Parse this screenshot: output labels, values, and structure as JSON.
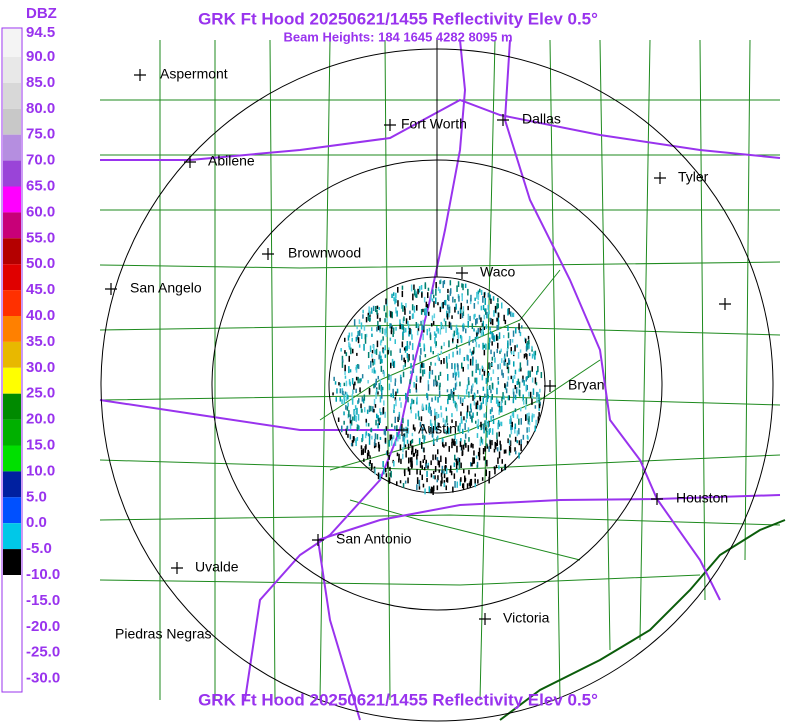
{
  "header": {
    "title": "GRK Ft Hood 20250621/1455 Reflectivity Elev 0.5°",
    "subtitle": "Beam Heights: 184 1645 4282 8095 m"
  },
  "legend": {
    "unit": "DBZ",
    "labels": [
      "94.5",
      "90.0",
      "85.0",
      "80.0",
      "75.0",
      "70.0",
      "65.0",
      "60.0",
      "55.0",
      "50.0",
      "45.0",
      "40.0",
      "35.0",
      "30.0",
      "25.0",
      "20.0",
      "15.0",
      "10.0",
      "5.0",
      "0.0",
      "-5.0",
      "-10.0",
      "-15.0",
      "-20.0",
      "-25.0",
      "-30.0"
    ]
  },
  "cities": [
    "Aspermont",
    "Fort Worth",
    "Dallas",
    "Abilene",
    "Tyler",
    "Brownwood",
    "Waco",
    "San Angelo",
    "Bryan",
    "Austin",
    "Houston",
    "San Antonio",
    "Uvalde",
    "Piedras Negras",
    "Victoria"
  ],
  "footer": {
    "title": "GRK Ft Hood 20250621/1455 Reflectivity Elev 0.5°"
  }
}
